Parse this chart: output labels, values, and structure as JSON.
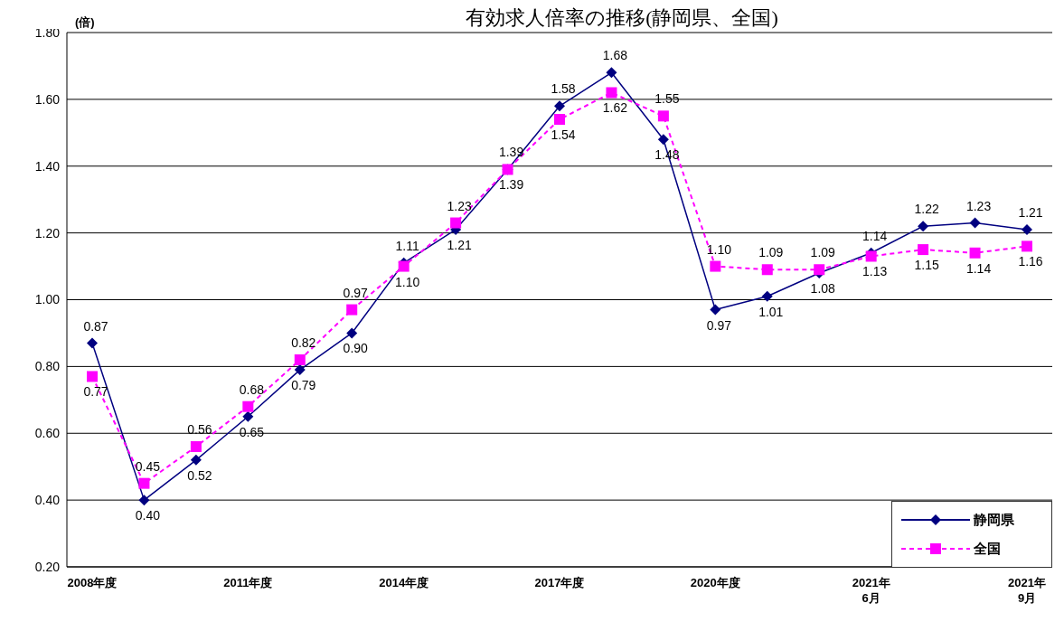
{
  "chart_data": {
    "type": "line",
    "title": "有効求人倍率の推移(静岡県、全国)",
    "ylabel": "(倍)",
    "categories": [
      "2008年度",
      null,
      null,
      "2011年度",
      null,
      null,
      "2014年度",
      null,
      null,
      "2017年度",
      null,
      null,
      "2020年度",
      null,
      null,
      "2021年\n6月",
      null,
      null,
      "2021年\n9月"
    ],
    "series": [
      {
        "name": "静岡県",
        "color": "#000080",
        "marker": "diamond",
        "line_style": "solid",
        "values": [
          0.87,
          0.4,
          0.52,
          0.65,
          0.79,
          0.9,
          1.11,
          1.21,
          1.39,
          1.58,
          1.68,
          1.48,
          0.97,
          1.01,
          1.08,
          1.14,
          1.22,
          1.23,
          1.21
        ],
        "value_labels": [
          "0.87",
          "0.40",
          "0.52",
          "0.65",
          "0.79",
          "0.90",
          "1.11",
          "1.21",
          "1.39",
          "1.58",
          "1.68",
          "1.48",
          "0.97",
          "1.01",
          "1.08",
          "1.14",
          "1.22",
          "1.23",
          "1.21"
        ]
      },
      {
        "name": "全国",
        "color": "#ff00ff",
        "marker": "square",
        "line_style": "dashed",
        "values": [
          0.77,
          0.45,
          0.56,
          0.68,
          0.82,
          0.97,
          1.1,
          1.23,
          1.39,
          1.54,
          1.62,
          1.55,
          1.1,
          1.09,
          1.09,
          1.13,
          1.15,
          1.14,
          1.16
        ],
        "value_labels": [
          "0.77",
          "0.45",
          "0.56",
          "0.68",
          "0.82",
          "0.97",
          "1.10",
          "1.23",
          "1.39",
          "1.54",
          "1.62",
          "1.55",
          "1.10",
          "1.09",
          "1.09",
          "1.13",
          "1.15",
          "1.14",
          "1.16"
        ]
      }
    ],
    "ylim": [
      0.2,
      1.8
    ],
    "yticks": [
      {
        "value": 0.2,
        "label": "0.20"
      },
      {
        "value": 0.4,
        "label": "0.40"
      },
      {
        "value": 0.6,
        "label": "0.60"
      },
      {
        "value": 0.8,
        "label": "0.80"
      },
      {
        "value": 1.0,
        "label": "1.00"
      },
      {
        "value": 1.2,
        "label": "1.20"
      },
      {
        "value": 1.4,
        "label": "1.40"
      },
      {
        "value": 1.6,
        "label": "1.60"
      },
      {
        "value": 1.8,
        "label": "1.80"
      }
    ],
    "grid": "y",
    "legend": "bottom right"
  }
}
